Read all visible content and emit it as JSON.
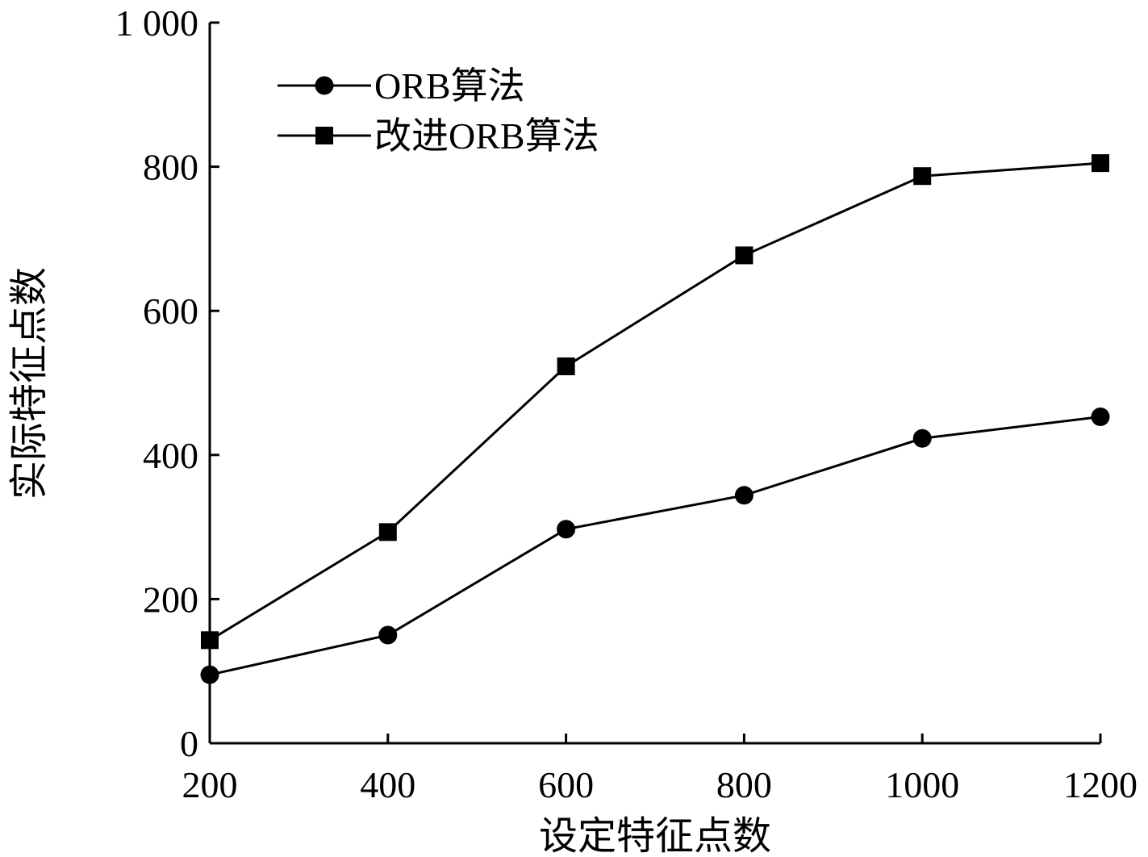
{
  "chart_data": {
    "type": "line",
    "title": "",
    "xlabel": "设定特征点数",
    "ylabel": "实际特征点数",
    "x": [
      200,
      400,
      600,
      800,
      1000,
      1200
    ],
    "xlim": [
      200,
      1200
    ],
    "ylim": [
      0,
      1000
    ],
    "x_ticks": [
      200,
      400,
      600,
      800,
      1000,
      1200
    ],
    "x_tick_labels": [
      "200",
      "400",
      "600",
      "800",
      "1000",
      "1200"
    ],
    "y_ticks": [
      0,
      200,
      400,
      600,
      800,
      1000
    ],
    "y_tick_labels": [
      "0",
      "200",
      "400",
      "600",
      "800",
      "1 000"
    ],
    "grid": false,
    "legend_position": "top-left",
    "series": [
      {
        "name": "ORB算法",
        "marker": "circle",
        "color": "#000000",
        "values": [
          95,
          150,
          297,
          344,
          423,
          453
        ]
      },
      {
        "name": "改进ORB算法",
        "marker": "square",
        "color": "#000000",
        "values": [
          143,
          293,
          523,
          677,
          787,
          805
        ]
      }
    ]
  }
}
